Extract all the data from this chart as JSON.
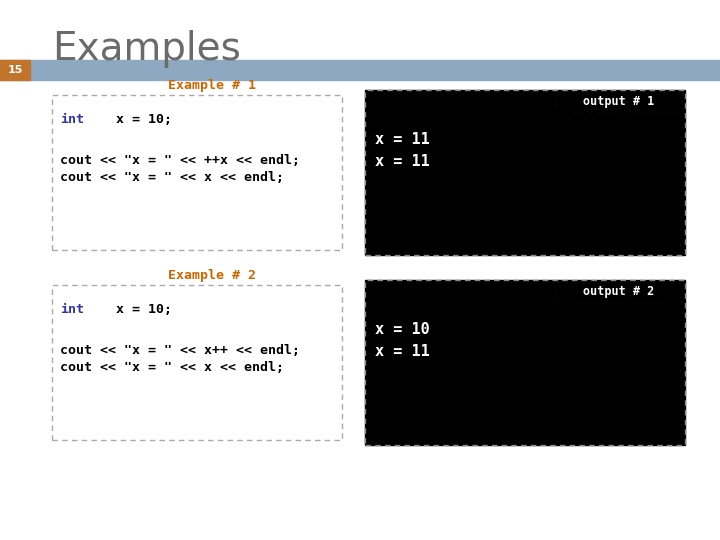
{
  "title": "Examples",
  "title_color": "#6B6B6B",
  "title_fontsize": 28,
  "slide_number": "15",
  "slide_number_bg": "#C0752A",
  "slide_number_color": "#ffffff",
  "header_bar_color": "#8DA8C0",
  "bg_color": "#ffffff",
  "example1_label": "Example # 1",
  "example1_label_color": "#CC6600",
  "example1_output_label": "output # 1",
  "example1_output_lines": [
    "x = 11",
    "x = 11"
  ],
  "example2_label": "Example # 2",
  "example2_label_color": "#CC6600",
  "example2_output_label": "output # 2",
  "example2_output_lines": [
    "x = 10",
    "x = 11"
  ],
  "output_bg": "#000000",
  "output_text_color": "#ffffff",
  "output_label_color": "#ffffff",
  "int_color": "#3333AA",
  "code_color": "#000000",
  "code_fontsize": 9.5,
  "output_fontsize": 11
}
